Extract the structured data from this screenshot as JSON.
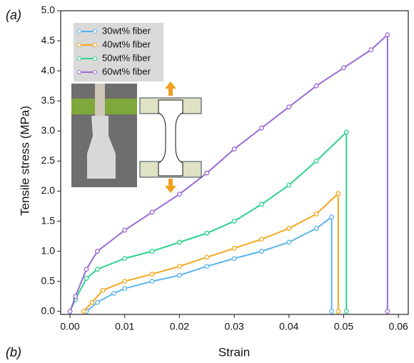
{
  "chart_data": {
    "type": "line",
    "xlabel": "Strain",
    "ylabel": "Tensile stress (MPa)",
    "xlim": [
      -0.0017,
      0.0618
    ],
    "ylim": [
      -0.05,
      5.0
    ],
    "xticks": [
      {
        "value": 0,
        "label": "0.00"
      },
      {
        "value": 0.01,
        "label": "0.01"
      },
      {
        "value": 0.02,
        "label": "0.02"
      },
      {
        "value": 0.03,
        "label": "0.03"
      },
      {
        "value": 0.04,
        "label": "0.04"
      },
      {
        "value": 0.05,
        "label": "0.05"
      },
      {
        "value": 0.06,
        "label": "0.06"
      }
    ],
    "yticks": [
      {
        "value": 0,
        "label": "0.0"
      },
      {
        "value": 0.5,
        "label": "0.5"
      },
      {
        "value": 1,
        "label": "1.0"
      },
      {
        "value": 1.5,
        "label": "1.5"
      },
      {
        "value": 2,
        "label": "2.0"
      },
      {
        "value": 2.5,
        "label": "2.5"
      },
      {
        "value": 3,
        "label": "3.0"
      },
      {
        "value": 3.5,
        "label": "3.5"
      },
      {
        "value": 4,
        "label": "4.0"
      },
      {
        "value": 4.5,
        "label": "4.5"
      },
      {
        "value": 5,
        "label": "5.0"
      }
    ],
    "legend": "upper left",
    "series": [
      {
        "name": "30wt% fiber",
        "color": "#5bb4ec",
        "x": [
          0.003,
          0.005,
          0.008,
          0.01,
          0.015,
          0.02,
          0.025,
          0.03,
          0.035,
          0.04,
          0.045,
          0.0478,
          0.0478
        ],
        "values": [
          0,
          0.15,
          0.3,
          0.38,
          0.5,
          0.6,
          0.75,
          0.88,
          1.0,
          1.15,
          1.38,
          1.57,
          0
        ]
      },
      {
        "name": "40wt% fiber",
        "color": "#f3a81f",
        "x": [
          0.0025,
          0.004,
          0.006,
          0.01,
          0.015,
          0.02,
          0.025,
          0.03,
          0.035,
          0.04,
          0.045,
          0.049,
          0.049
        ],
        "values": [
          0,
          0.15,
          0.35,
          0.5,
          0.62,
          0.75,
          0.9,
          1.05,
          1.2,
          1.38,
          1.62,
          1.96,
          0
        ]
      },
      {
        "name": "50wt% fiber",
        "color": "#2fd28c",
        "x": [
          0,
          0.001,
          0.003,
          0.005,
          0.01,
          0.015,
          0.02,
          0.025,
          0.03,
          0.035,
          0.04,
          0.045,
          0.0505,
          0.0505
        ],
        "values": [
          0,
          0.2,
          0.55,
          0.7,
          0.88,
          1.0,
          1.15,
          1.3,
          1.5,
          1.78,
          2.1,
          2.5,
          2.98,
          0
        ]
      },
      {
        "name": "60wt% fiber",
        "color": "#9a6ad4",
        "x": [
          0,
          0.001,
          0.003,
          0.005,
          0.01,
          0.015,
          0.02,
          0.025,
          0.03,
          0.035,
          0.04,
          0.045,
          0.05,
          0.055,
          0.058,
          0.058
        ],
        "values": [
          0,
          0.25,
          0.7,
          1.0,
          1.35,
          1.65,
          1.95,
          2.3,
          2.7,
          3.05,
          3.4,
          3.75,
          4.05,
          4.35,
          4.6,
          0
        ]
      }
    ]
  },
  "panel_labels": [
    "(a)",
    "(b)"
  ]
}
